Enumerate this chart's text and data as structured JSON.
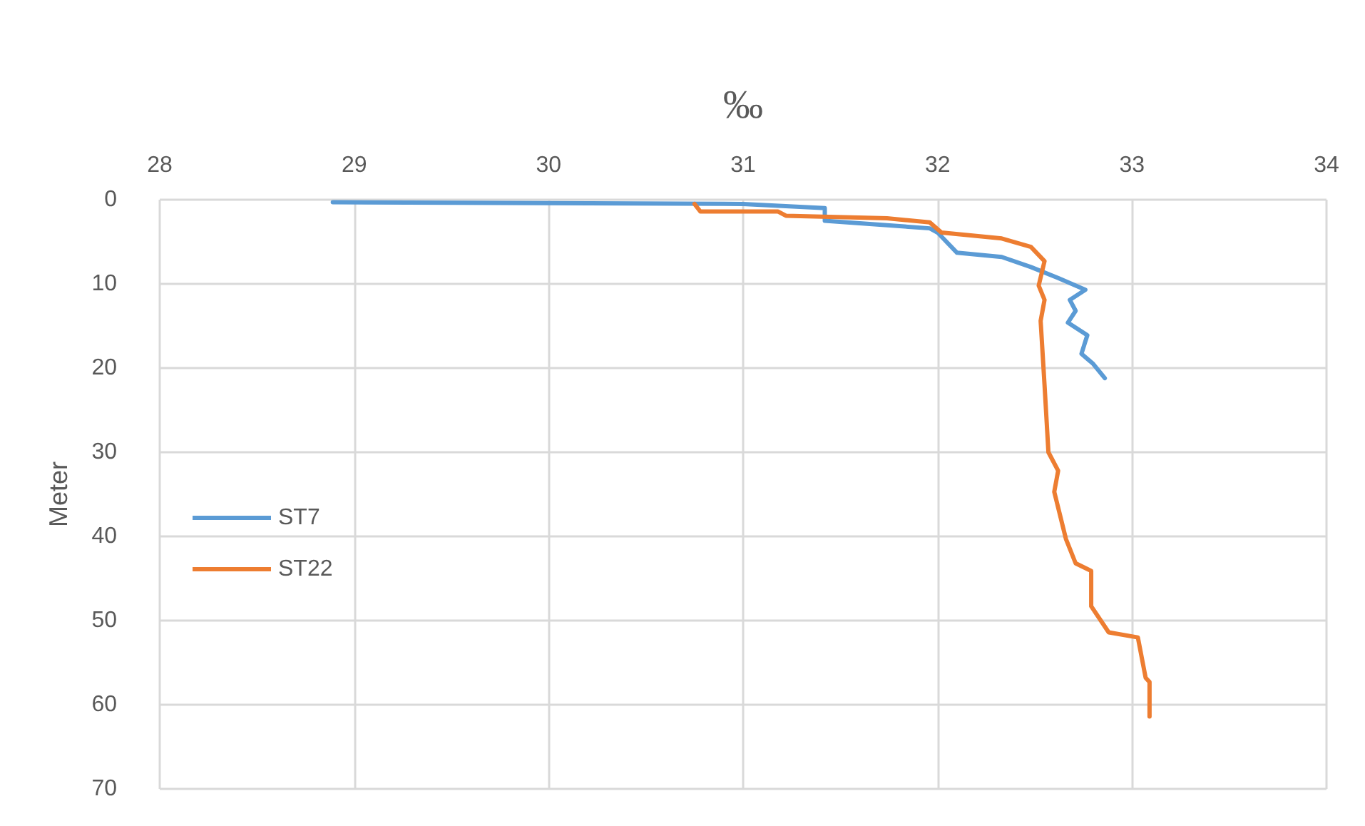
{
  "chart_data": {
    "type": "line",
    "xlabel": "‰",
    "ylabel": "Meter",
    "xlim": [
      28,
      34
    ],
    "xticks": [
      28,
      29,
      30,
      31,
      32,
      33,
      34
    ],
    "ylim": [
      70,
      0
    ],
    "yticks": [
      0,
      10,
      20,
      30,
      40,
      50,
      60,
      70
    ],
    "grid": true,
    "legend": "left",
    "marker": "none",
    "line_style": "solid",
    "series": [
      {
        "name": "ST7",
        "color": "#5b9bd5",
        "x": [
          28.89,
          31.0,
          31.42,
          31.42,
          31.96,
          32.0,
          32.1,
          32.33,
          32.48,
          32.62,
          32.76,
          32.68,
          32.71,
          32.67,
          32.77,
          32.74,
          32.8,
          32.86
        ],
        "values": [
          0.3,
          0.5,
          1.0,
          2.5,
          3.4,
          3.9,
          6.3,
          6.8,
          8.0,
          9.3,
          10.7,
          11.9,
          13.2,
          14.6,
          16.1,
          18.3,
          19.5,
          21.2
        ]
      },
      {
        "name": "ST22",
        "color": "#ed7d31",
        "x": [
          30.75,
          30.78,
          31.18,
          31.22,
          31.74,
          31.96,
          32.02,
          32.33,
          32.48,
          32.55,
          32.52,
          32.55,
          32.53,
          32.55,
          32.57,
          32.62,
          32.6,
          32.66,
          32.71,
          32.79,
          32.79,
          32.88,
          33.03,
          33.07,
          33.09,
          33.09
        ],
        "values": [
          0.5,
          1.4,
          1.4,
          1.9,
          2.2,
          2.7,
          3.9,
          4.6,
          5.6,
          7.3,
          10.2,
          11.9,
          14.4,
          22.0,
          30.0,
          32.2,
          34.7,
          40.3,
          43.2,
          44.1,
          48.3,
          51.4,
          52.0,
          56.8,
          57.3,
          61.4
        ]
      }
    ]
  }
}
